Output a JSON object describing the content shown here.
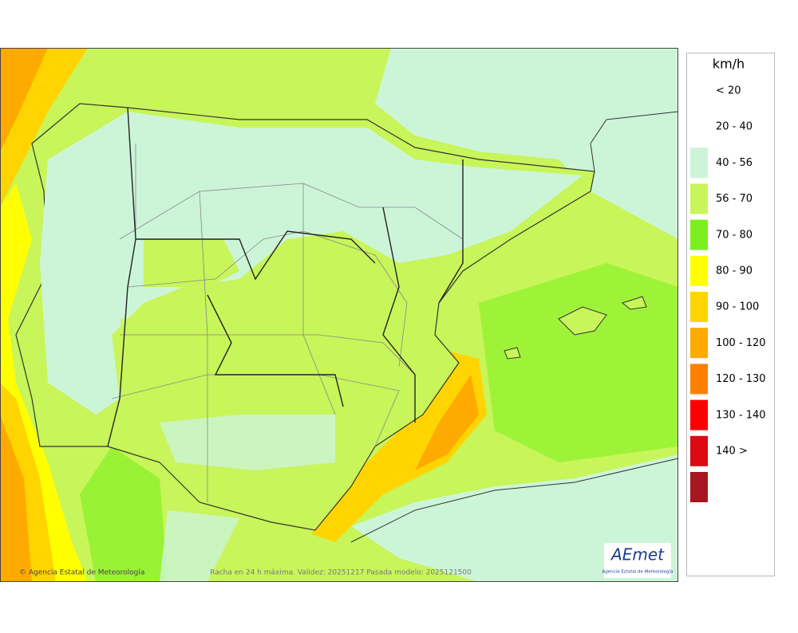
{
  "legend": {
    "unit": "km/h",
    "items": [
      {
        "label": "< 20",
        "color": "#ffffff"
      },
      {
        "label": "20 - 40",
        "color": "#ccf5d8"
      },
      {
        "label": "40 - 56",
        "color": "#c8f55a"
      },
      {
        "label": "56 - 70",
        "color": "#7cf01e"
      },
      {
        "label": "70 - 80",
        "color": "#ffff00"
      },
      {
        "label": "80 - 90",
        "color": "#ffd400"
      },
      {
        "label": "90 - 100",
        "color": "#ffaa00"
      },
      {
        "label": "100 - 120",
        "color": "#ff8000"
      },
      {
        "label": "120 - 130",
        "color": "#ff0000"
      },
      {
        "label": "130 - 140",
        "color": "#dd0a14"
      },
      {
        "label": "140 >",
        "color": "#a81620"
      }
    ]
  },
  "footer": {
    "credit": "© Agencia Estatal de Meteorología",
    "caption": "Racha en 24 h máxima. Validez: 20251217 Pasada modelo: 2025121500"
  },
  "logo": {
    "name": "AEmet",
    "subtitle": "Agencia Estatal de Meteorología"
  }
}
